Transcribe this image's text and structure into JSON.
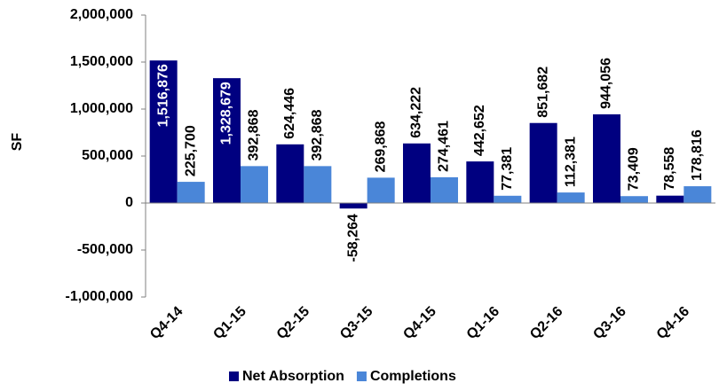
{
  "chart_data": {
    "type": "bar",
    "y_label": "SF",
    "categories": [
      "Q4-14",
      "Q1-15",
      "Q2-15",
      "Q3-15",
      "Q4-15",
      "Q1-16",
      "Q2-16",
      "Q3-16",
      "Q4-16"
    ],
    "series": [
      {
        "name": "Net Absorption",
        "color": "#000080",
        "values": [
          1516876,
          1328679,
          624446,
          -58264,
          634222,
          442652,
          851682,
          944056,
          78558
        ],
        "value_labels": [
          "1,516,876",
          "1,328,679",
          "624,446",
          "-58,264",
          "634,222",
          "442,652",
          "851,682",
          "944,056",
          "78,558"
        ]
      },
      {
        "name": "Completions",
        "color": "#4a86d8",
        "values": [
          225700,
          392868,
          392868,
          269868,
          274461,
          77381,
          112381,
          73409,
          178816
        ],
        "value_labels": [
          "225,700",
          "392,868",
          "392,868",
          "269,868",
          "274,461",
          "77,381",
          "112,381",
          "73,409",
          "178,816"
        ]
      }
    ],
    "ylim": [
      -1000000,
      2000000
    ],
    "yticks": [
      {
        "value": -1000000,
        "label": "-1,000,000"
      },
      {
        "value": -500000,
        "label": "-500,000"
      },
      0,
      {
        "value": 500000,
        "label": "500,000"
      },
      {
        "value": 1000000,
        "label": "1,000,000"
      },
      {
        "value": 1500000,
        "label": "1,500,000"
      },
      {
        "value": 2000000,
        "label": "2,000,000"
      }
    ],
    "legend": "bottom"
  }
}
